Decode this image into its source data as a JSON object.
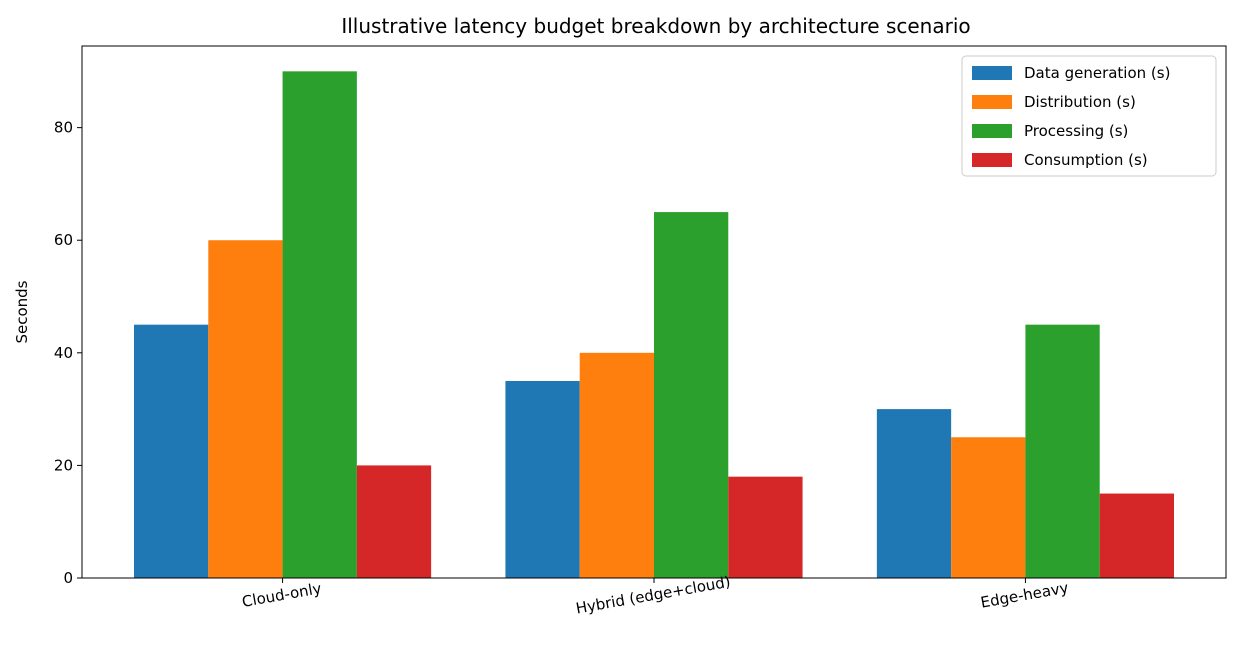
{
  "chart_data": {
    "type": "bar",
    "title": "Illustrative latency budget breakdown by architecture scenario",
    "xlabel": "",
    "ylabel": "Seconds",
    "categories": [
      "Cloud-only",
      "Hybrid (edge+cloud)",
      "Edge-heavy"
    ],
    "series": [
      {
        "name": "Data generation (s)",
        "color": "#1f77b4",
        "values": [
          45,
          35,
          30
        ]
      },
      {
        "name": "Distribution (s)",
        "color": "#ff7f0e",
        "values": [
          60,
          40,
          25
        ]
      },
      {
        "name": "Processing (s)",
        "color": "#2ca02c",
        "values": [
          90,
          65,
          45
        ]
      },
      {
        "name": "Consumption (s)",
        "color": "#d62728",
        "values": [
          20,
          18,
          15
        ]
      }
    ],
    "ylim": [
      0,
      94.5
    ],
    "yticks": [
      0,
      20,
      40,
      60,
      80
    ],
    "grid": false,
    "legend_position": "top-right",
    "x_tick_rotation_deg": -10
  }
}
